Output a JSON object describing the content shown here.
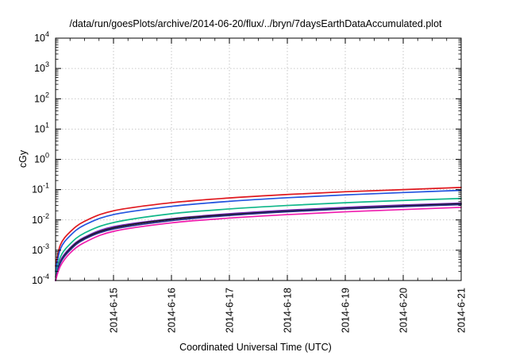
{
  "chart_data": {
    "type": "line",
    "title": "/data/run/goesPlots/archive/2014-06-20/flux/../bryn/7daysEarthDataAccumulated.plot",
    "xlabel": "Coordinated Universal Time (UTC)",
    "ylabel": "cGy",
    "x_scale": "time",
    "y_scale": "log",
    "xlim": [
      "2014-06-14T00:00",
      "2014-06-21T00:00"
    ],
    "ylim": [
      0.0001,
      10000
    ],
    "grid": true,
    "x_ticks": [
      "2014-6-15",
      "2014-6-16",
      "2014-6-17",
      "2014-6-18",
      "2014-6-19",
      "2014-6-20",
      "2014-6-21"
    ],
    "y_ticks": [
      {
        "base": "10",
        "exp": "-4",
        "value": 0.0001
      },
      {
        "base": "10",
        "exp": "-3",
        "value": 0.001
      },
      {
        "base": "10",
        "exp": "-2",
        "value": 0.01
      },
      {
        "base": "10",
        "exp": "-1",
        "value": 0.1
      },
      {
        "base": "10",
        "exp": "0",
        "value": 1
      },
      {
        "base": "10",
        "exp": "1",
        "value": 10
      },
      {
        "base": "10",
        "exp": "2",
        "value": 100
      },
      {
        "base": "10",
        "exp": "3",
        "value": 1000
      },
      {
        "base": "10",
        "exp": "4",
        "value": 10000
      }
    ],
    "x": [
      "2014-06-14T00:00",
      "2014-06-14T02:00",
      "2014-06-14T06:00",
      "2014-06-14T12:00",
      "2014-06-15T00:00",
      "2014-06-16T00:00",
      "2014-06-17T00:00",
      "2014-06-18T00:00",
      "2014-06-19T00:00",
      "2014-06-20T00:00",
      "2014-06-21T00:00"
    ],
    "series": [
      {
        "color": "#e0181e",
        "values": [
          0.0003,
          0.0015,
          0.004,
          0.009,
          0.02,
          0.037,
          0.053,
          0.069,
          0.085,
          0.1,
          0.118
        ]
      },
      {
        "color": "#2355e0",
        "values": [
          0.0002,
          0.0011,
          0.003,
          0.0068,
          0.015,
          0.028,
          0.041,
          0.054,
          0.067,
          0.08,
          0.095
        ]
      },
      {
        "color": "#10b78a",
        "values": [
          0.00013,
          0.0006,
          0.0016,
          0.0037,
          0.0082,
          0.016,
          0.023,
          0.03,
          0.037,
          0.044,
          0.051
        ]
      },
      {
        "color": "#7a2cc0",
        "values": [
          0.0001,
          0.00045,
          0.0012,
          0.0027,
          0.006,
          0.011,
          0.016,
          0.021,
          0.026,
          0.031,
          0.036
        ]
      },
      {
        "color": "#1a1a1a",
        "values": [
          0.0001,
          0.0004,
          0.0011,
          0.0025,
          0.0055,
          0.0105,
          0.015,
          0.0195,
          0.024,
          0.029,
          0.034
        ]
      },
      {
        "color": "#2a2d8a",
        "values": [
          0.0001,
          0.00038,
          0.001,
          0.0023,
          0.005,
          0.0095,
          0.014,
          0.0185,
          0.023,
          0.0275,
          0.032
        ]
      },
      {
        "color": "#f01cae",
        "values": [
          0.0001,
          0.0003,
          0.0008,
          0.0018,
          0.0042,
          0.008,
          0.0115,
          0.015,
          0.0185,
          0.022,
          0.026
        ]
      }
    ]
  }
}
